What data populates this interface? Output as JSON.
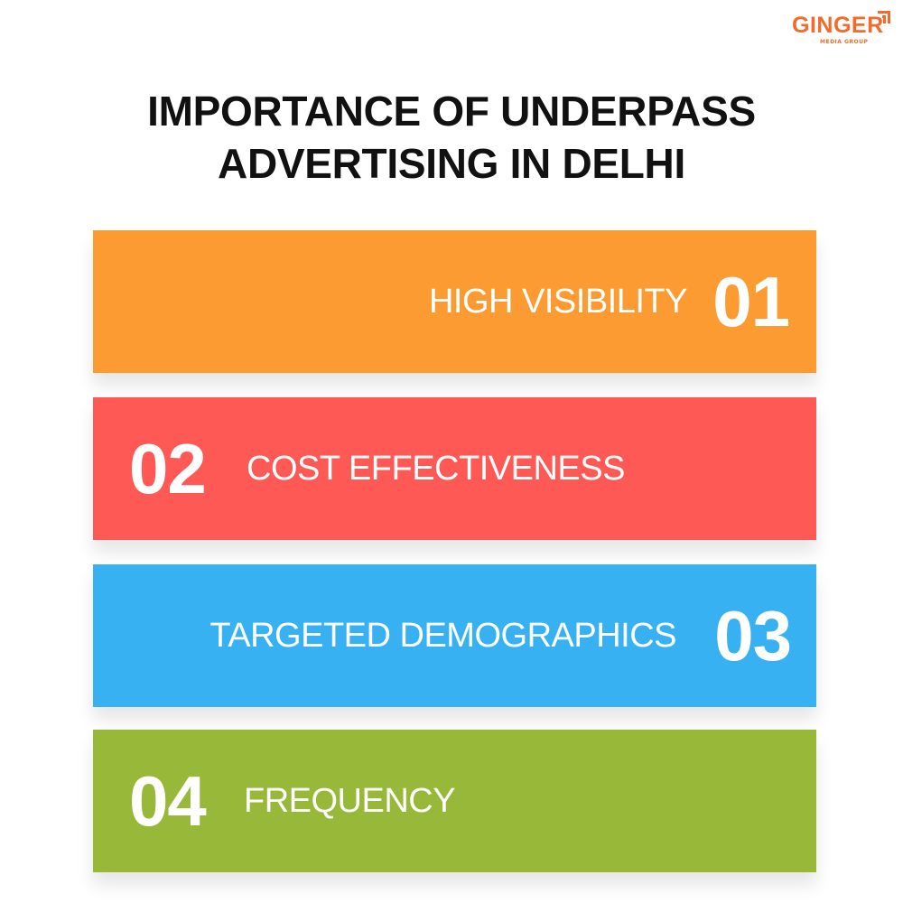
{
  "brand": {
    "name": "GINGER",
    "tagline": "MEDIA GROUP",
    "color": "#f26b2b"
  },
  "title": {
    "line1": "IMPORTANCE OF UNDERPASS",
    "line2": "ADVERTISING IN DELHI"
  },
  "items": [
    {
      "number": "01",
      "label": "HIGH VISIBILITY",
      "color": "#fb9b32"
    },
    {
      "number": "02",
      "label": "COST EFFECTIVENESS",
      "color": "#fe5955"
    },
    {
      "number": "03",
      "label": "TARGETED DEMOGRAPHICS",
      "color": "#38b1f2"
    },
    {
      "number": "04",
      "label": "FREQUENCY",
      "color": "#98b83a"
    }
  ]
}
